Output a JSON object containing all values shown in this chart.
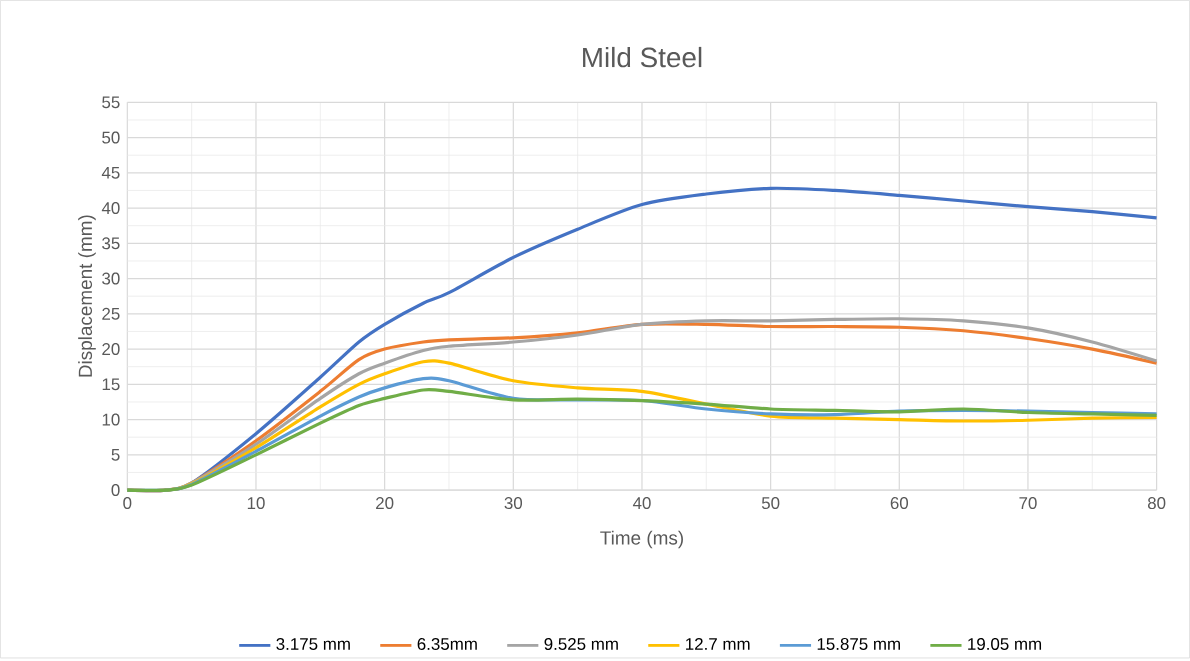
{
  "chart_data": {
    "type": "line",
    "title": "Mild Steel",
    "xlabel": "Time (ms)",
    "ylabel": "Displacement (mm)",
    "x": [
      0,
      3,
      5,
      10,
      15,
      18,
      20,
      23,
      25,
      30,
      35,
      40,
      45,
      50,
      55,
      60,
      65,
      70,
      75,
      80
    ],
    "series": [
      {
        "name": "3.175 mm",
        "color": "#4472c4",
        "values": [
          0,
          0,
          1,
          8,
          16,
          21,
          23.5,
          26.5,
          28,
          33,
          37,
          40.5,
          42,
          42.8,
          42.5,
          41.8,
          41,
          40.2,
          39.5,
          38.6
        ]
      },
      {
        "name": "6.35mm",
        "color": "#ed7d31",
        "values": [
          0,
          0,
          1,
          7,
          14,
          18.5,
          20,
          21,
          21.3,
          21.6,
          22.3,
          23.5,
          23.5,
          23.2,
          23.2,
          23.1,
          22.6,
          21.5,
          20,
          18
        ]
      },
      {
        "name": "9.525 mm",
        "color": "#a5a5a5",
        "values": [
          0,
          0,
          1,
          6.5,
          13,
          16.5,
          18,
          19.8,
          20.4,
          21,
          22,
          23.5,
          24,
          24,
          24.2,
          24.3,
          24,
          23,
          21,
          18.3
        ]
      },
      {
        "name": "12.7 mm",
        "color": "#ffc000",
        "values": [
          0,
          0,
          0.9,
          6,
          11.8,
          15,
          16.5,
          18.2,
          18,
          15.5,
          14.5,
          14,
          12.2,
          10.5,
          10.2,
          10,
          9.8,
          9.9,
          10.2,
          10.3
        ]
      },
      {
        "name": "15.875 mm",
        "color": "#5b9bd5",
        "values": [
          0,
          0,
          0.8,
          5.5,
          10.5,
          13.2,
          14.5,
          15.8,
          15.5,
          13,
          12.8,
          12.7,
          11.5,
          10.8,
          10.7,
          11.2,
          11.3,
          11.2,
          11,
          10.8
        ]
      },
      {
        "name": "19.05 mm",
        "color": "#70ad47",
        "values": [
          0,
          0,
          0.7,
          5,
          9.5,
          12,
          13,
          14.2,
          14,
          12.8,
          12.9,
          12.7,
          12.2,
          11.5,
          11.3,
          11.1,
          11.5,
          11,
          10.8,
          10.6
        ]
      }
    ],
    "xlim": [
      0,
      80
    ],
    "ylim": [
      0,
      55
    ],
    "xticks": [
      0,
      10,
      20,
      30,
      40,
      50,
      60,
      70,
      80
    ],
    "yticks": [
      0,
      5,
      10,
      15,
      20,
      25,
      30,
      35,
      40,
      45,
      50,
      55
    ],
    "grid": true,
    "legend": "bottom",
    "line_style": "solid"
  }
}
